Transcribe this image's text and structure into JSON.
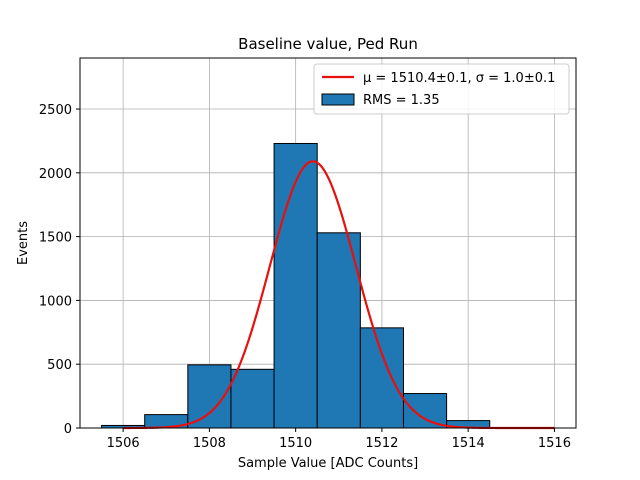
{
  "chart_data": {
    "type": "bar",
    "title": "Baseline value, Ped Run",
    "xlabel": "Sample Value [ADC Counts]",
    "ylabel": "Events",
    "xlim": [
      1505,
      1516.5
    ],
    "ylim": [
      0,
      2900
    ],
    "grid": true,
    "legend_position": "top-right",
    "xticks": [
      1506,
      1508,
      1510,
      1512,
      1514,
      1516
    ],
    "yticks": [
      0,
      500,
      1000,
      1500,
      2000,
      2500
    ],
    "bins": [
      {
        "x0": 1505.5,
        "x1": 1506.5,
        "value": 20
      },
      {
        "x0": 1506.5,
        "x1": 1507.5,
        "value": 105
      },
      {
        "x0": 1507.5,
        "x1": 1508.5,
        "value": 495
      },
      {
        "x0": 1508.5,
        "x1": 1509.5,
        "value": 460
      },
      {
        "x0": 1509.5,
        "x1": 1510.5,
        "value": 2230
      },
      {
        "x0": 1510.5,
        "x1": 1511.5,
        "value": 1530
      },
      {
        "x0": 1511.5,
        "x1": 1512.5,
        "value": 785
      },
      {
        "x0": 1512.5,
        "x1": 1513.5,
        "value": 270
      },
      {
        "x0": 1513.5,
        "x1": 1514.5,
        "value": 58
      }
    ],
    "fit": {
      "mu": 1510.4,
      "sigma": 1.0,
      "amplitude": 2090,
      "x_range": [
        1506,
        1516
      ]
    },
    "series": [
      {
        "name": "μ = 1510.4±0.1, σ = 1.0±0.1",
        "kind": "line",
        "color": "#e8100c"
      },
      {
        "name": "RMS = 1.35",
        "kind": "histogram",
        "color": "#1f77b4"
      }
    ]
  }
}
